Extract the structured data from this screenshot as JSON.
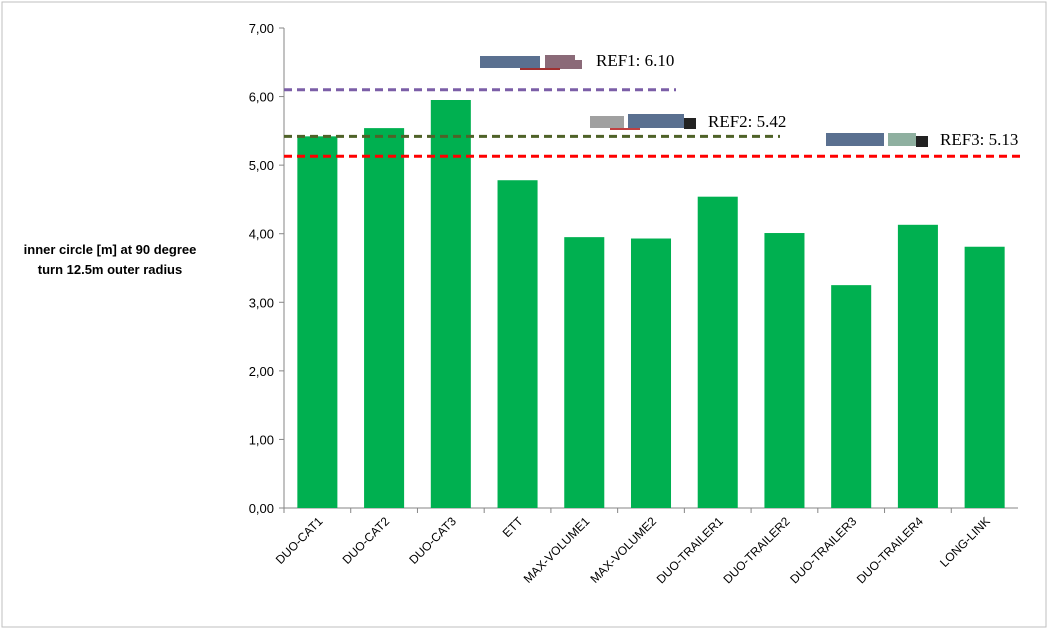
{
  "chart_data": {
    "type": "bar",
    "ylabel": "inner circle [m] at 90 degree turn 12.5m outer radius",
    "categories": [
      "DUO-CAT1",
      "DUO-CAT2",
      "DUO-CAT3",
      "ETT",
      "MAX-VOLUME1",
      "MAX-VOLUME2",
      "DUO-TRAILER1",
      "DUO-TRAILER2",
      "DUO-TRAILER3",
      "DUO-TRAILER4",
      "LONG-LINK"
    ],
    "values": [
      5.42,
      5.54,
      5.95,
      4.78,
      3.95,
      3.93,
      4.54,
      4.01,
      3.25,
      4.13,
      3.81
    ],
    "color": "#00b050",
    "ylim": [
      0,
      7
    ],
    "yticks": [
      {
        "value": 0,
        "label": "0,00"
      },
      {
        "value": 1,
        "label": "1,00"
      },
      {
        "value": 2,
        "label": "2,00"
      },
      {
        "value": 3,
        "label": "3,00"
      },
      {
        "value": 4,
        "label": "4,00"
      },
      {
        "value": 5,
        "label": "5,00"
      },
      {
        "value": 6,
        "label": "6,00"
      },
      {
        "value": 7,
        "label": "7,00"
      }
    ],
    "reference_lines": [
      {
        "value": 6.1,
        "label": "REF1: 6.10",
        "color": "#7b5ea7"
      },
      {
        "value": 5.42,
        "label": "REF2: 5.42",
        "color": "#4f6228"
      },
      {
        "value": 5.13,
        "label": "REF3: 5.13",
        "color": "#ff0000"
      }
    ]
  }
}
